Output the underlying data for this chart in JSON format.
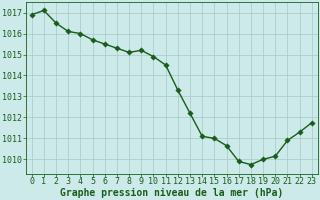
{
  "x": [
    0,
    1,
    2,
    3,
    4,
    5,
    6,
    7,
    8,
    9,
    10,
    11,
    12,
    13,
    14,
    15,
    16,
    17,
    18,
    19,
    20,
    21,
    22,
    23
  ],
  "y": [
    1016.9,
    1017.1,
    1016.5,
    1016.1,
    1016.0,
    1015.7,
    1015.5,
    1015.3,
    1015.1,
    1015.2,
    1014.9,
    1014.5,
    1013.3,
    1012.2,
    1011.1,
    1011.0,
    1010.65,
    1009.9,
    1009.75,
    1010.0,
    1010.15,
    1010.9,
    1011.3,
    1011.75
  ],
  "line_color": "#1a5c1a",
  "marker_color": "#1a5c1a",
  "bg_color": "#cceaea",
  "grid_color": "#a8c8c8",
  "xlabel": "Graphe pression niveau de la mer (hPa)",
  "xlabel_color": "#1a5c1a",
  "tick_color": "#1a5c1a",
  "ylim_min": 1009.3,
  "ylim_max": 1017.5,
  "yticks": [
    1010,
    1011,
    1012,
    1013,
    1014,
    1015,
    1016,
    1017
  ],
  "xticks": [
    0,
    1,
    2,
    3,
    4,
    5,
    6,
    7,
    8,
    9,
    10,
    11,
    12,
    13,
    14,
    15,
    16,
    17,
    18,
    19,
    20,
    21,
    22,
    23
  ],
  "xlabel_fontsize": 7.0,
  "tick_fontsize": 6.0,
  "line_width": 1.0,
  "marker_size": 2.8
}
